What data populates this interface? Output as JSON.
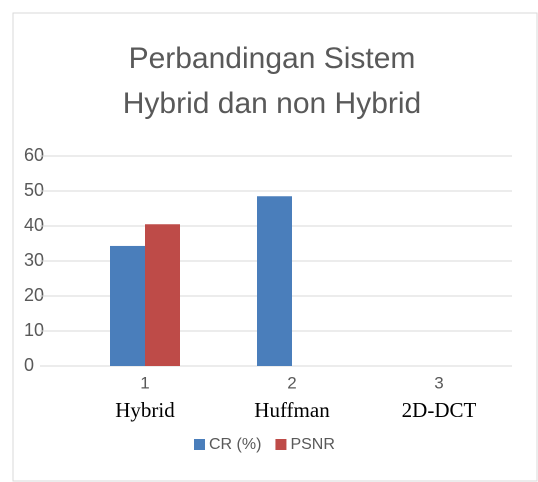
{
  "chart_data": {
    "type": "bar",
    "title": [
      "Perbandingan Sistem",
      "Hybrid dan non Hybrid"
    ],
    "categories": [
      "1",
      "2",
      "3"
    ],
    "category_names": [
      "Hybrid",
      "Huffman",
      "2D-DCT"
    ],
    "series": [
      {
        "name": "CR (%)",
        "color": "#4a7ebb",
        "values": [
          34.3,
          48.5,
          null
        ]
      },
      {
        "name": "PSNR",
        "color": "#be4b48",
        "values": [
          40.5,
          null,
          null
        ]
      }
    ],
    "ylim": [
      0,
      60
    ],
    "yticks": [
      0,
      10,
      20,
      30,
      40,
      50,
      60
    ],
    "grid": true,
    "legend": "bottom"
  }
}
